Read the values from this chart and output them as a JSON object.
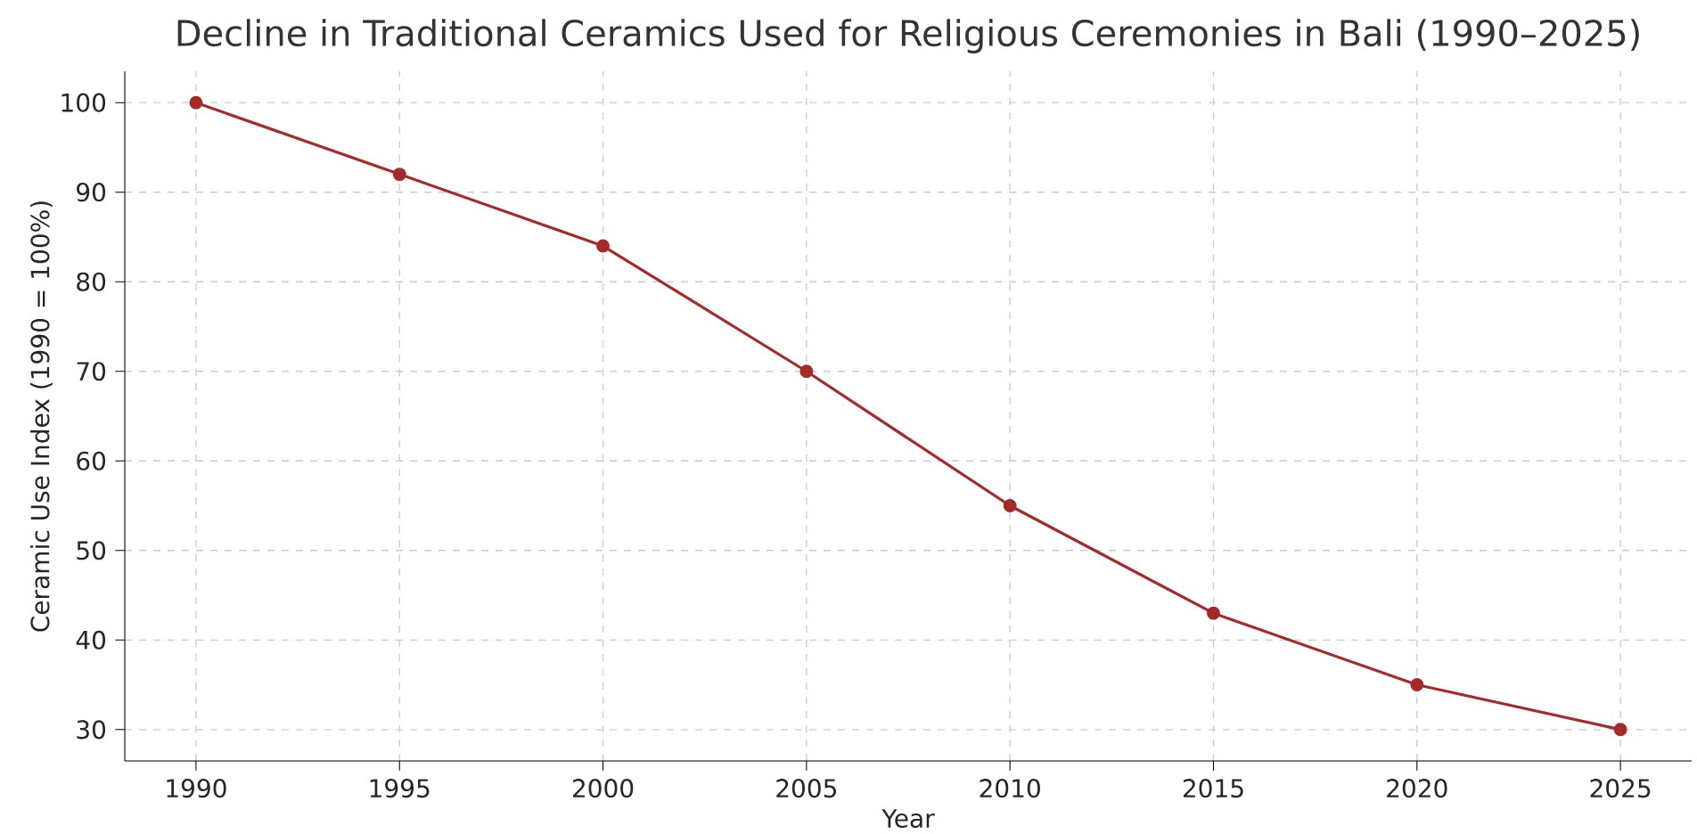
{
  "chart_data": {
    "type": "line",
    "title": "Decline in Traditional Ceramics Used for Religious Ceremonies in Bali (1990–2025)",
    "xlabel": "Year",
    "ylabel": "Ceramic Use Index (1990 = 100%)",
    "x": [
      1990,
      1995,
      2000,
      2005,
      2010,
      2015,
      2020,
      2025
    ],
    "series": [
      {
        "color": "#a52a2a",
        "values": [
          100,
          92,
          84,
          70,
          55,
          43,
          35,
          30
        ]
      }
    ],
    "xlim": [
      1988.25,
      2026.75
    ],
    "ylim": [
      26.5,
      103.5
    ],
    "xticks": [
      1990,
      1995,
      2000,
      2005,
      2010,
      2015,
      2020,
      2025
    ],
    "yticks": [
      30,
      40,
      50,
      60,
      70,
      80,
      90,
      100
    ],
    "grid": true,
    "marker": "circle",
    "line_style": "solid"
  }
}
